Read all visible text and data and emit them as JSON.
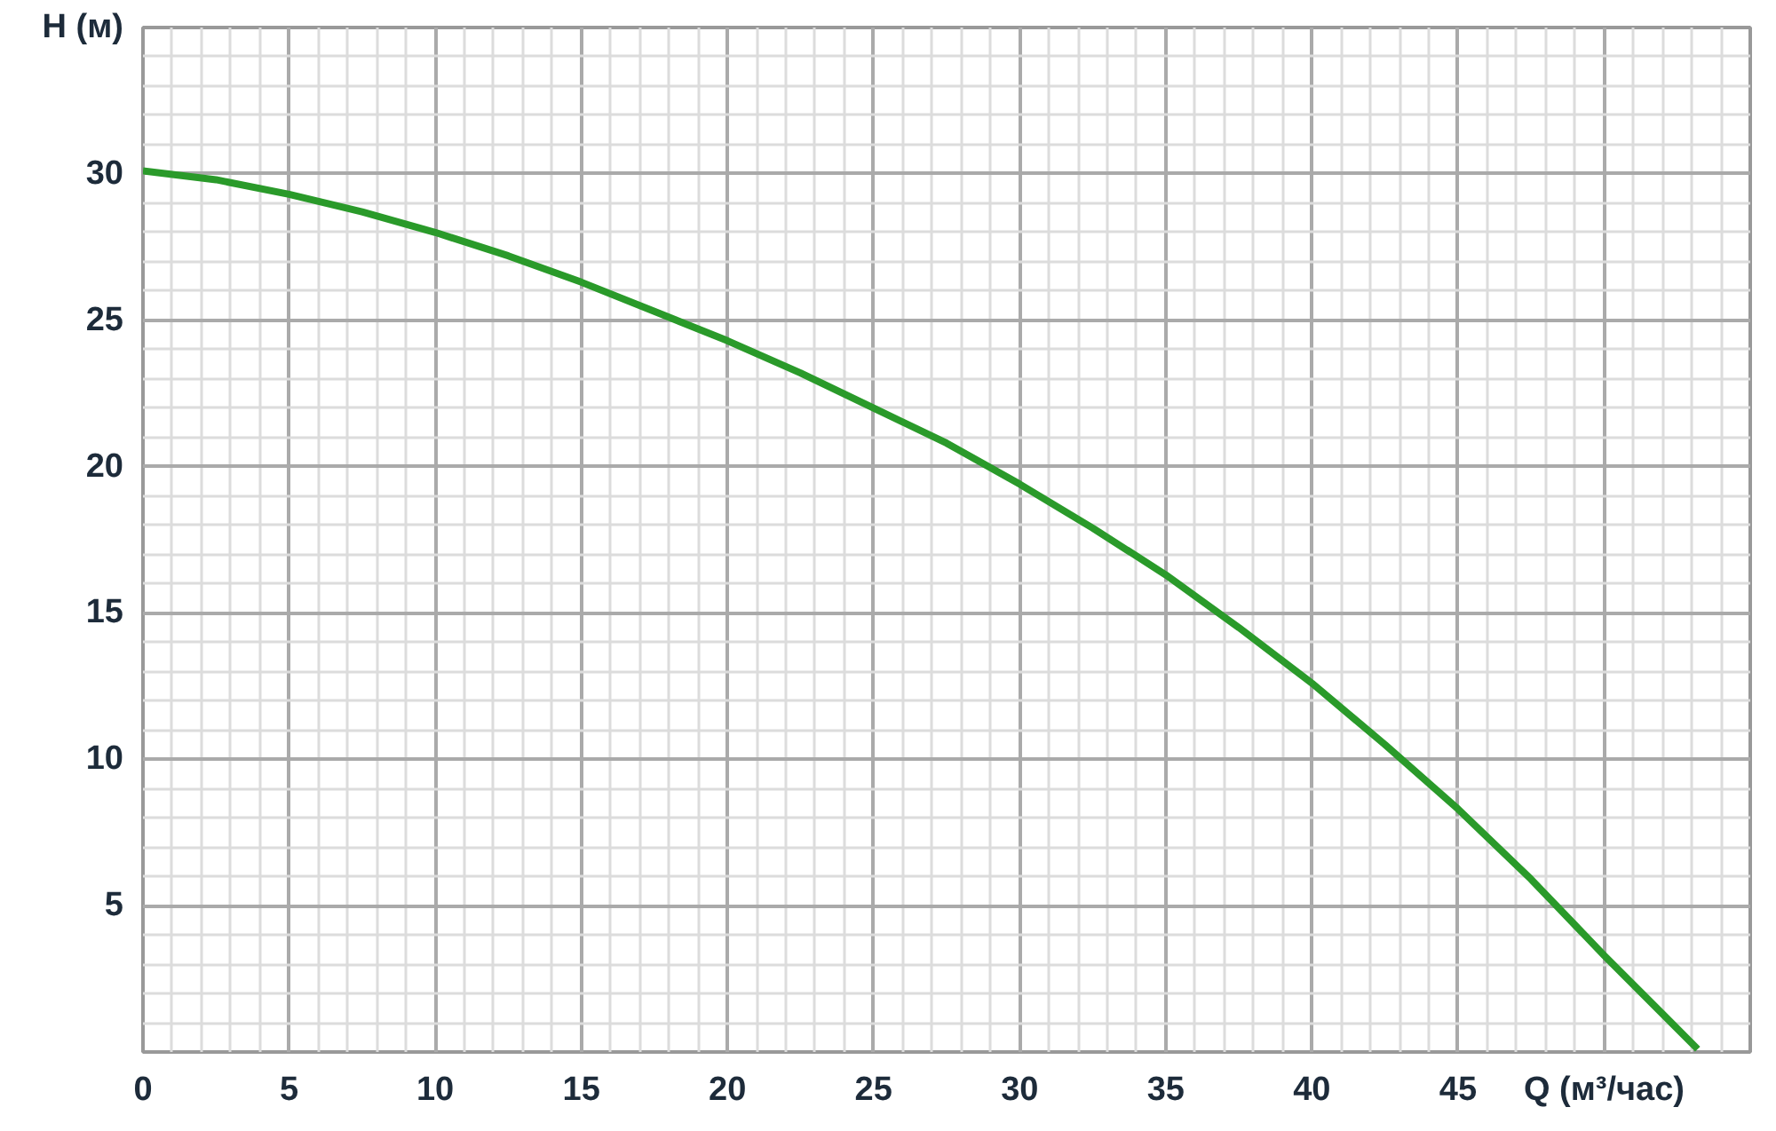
{
  "chart_data": {
    "type": "line",
    "xlabel": "Q (м³/час)",
    "ylabel": "H (м)",
    "x": [
      0,
      2.5,
      5,
      7.5,
      10,
      12.5,
      15,
      17.5,
      20,
      22.5,
      25,
      27.5,
      30,
      32.5,
      35,
      37.5,
      40,
      42.5,
      45,
      47.5,
      50,
      52,
      53.2
    ],
    "series": [
      {
        "color": "#2a9a2a",
        "values": [
          30.1,
          29.8,
          29.3,
          28.7,
          28.0,
          27.2,
          26.3,
          25.3,
          24.3,
          23.2,
          22.0,
          20.8,
          19.4,
          17.9,
          16.3,
          14.5,
          12.6,
          10.5,
          8.3,
          5.9,
          3.3,
          1.3,
          0.1
        ]
      }
    ],
    "xlim": [
      0,
      55
    ],
    "ylim": [
      0,
      35
    ],
    "xticks": [
      0,
      5,
      10,
      15,
      20,
      25,
      30,
      35,
      40,
      45
    ],
    "yticks": [
      5,
      10,
      15,
      20,
      25,
      30
    ],
    "grid": true,
    "marker": "none",
    "line_style": "solid"
  }
}
